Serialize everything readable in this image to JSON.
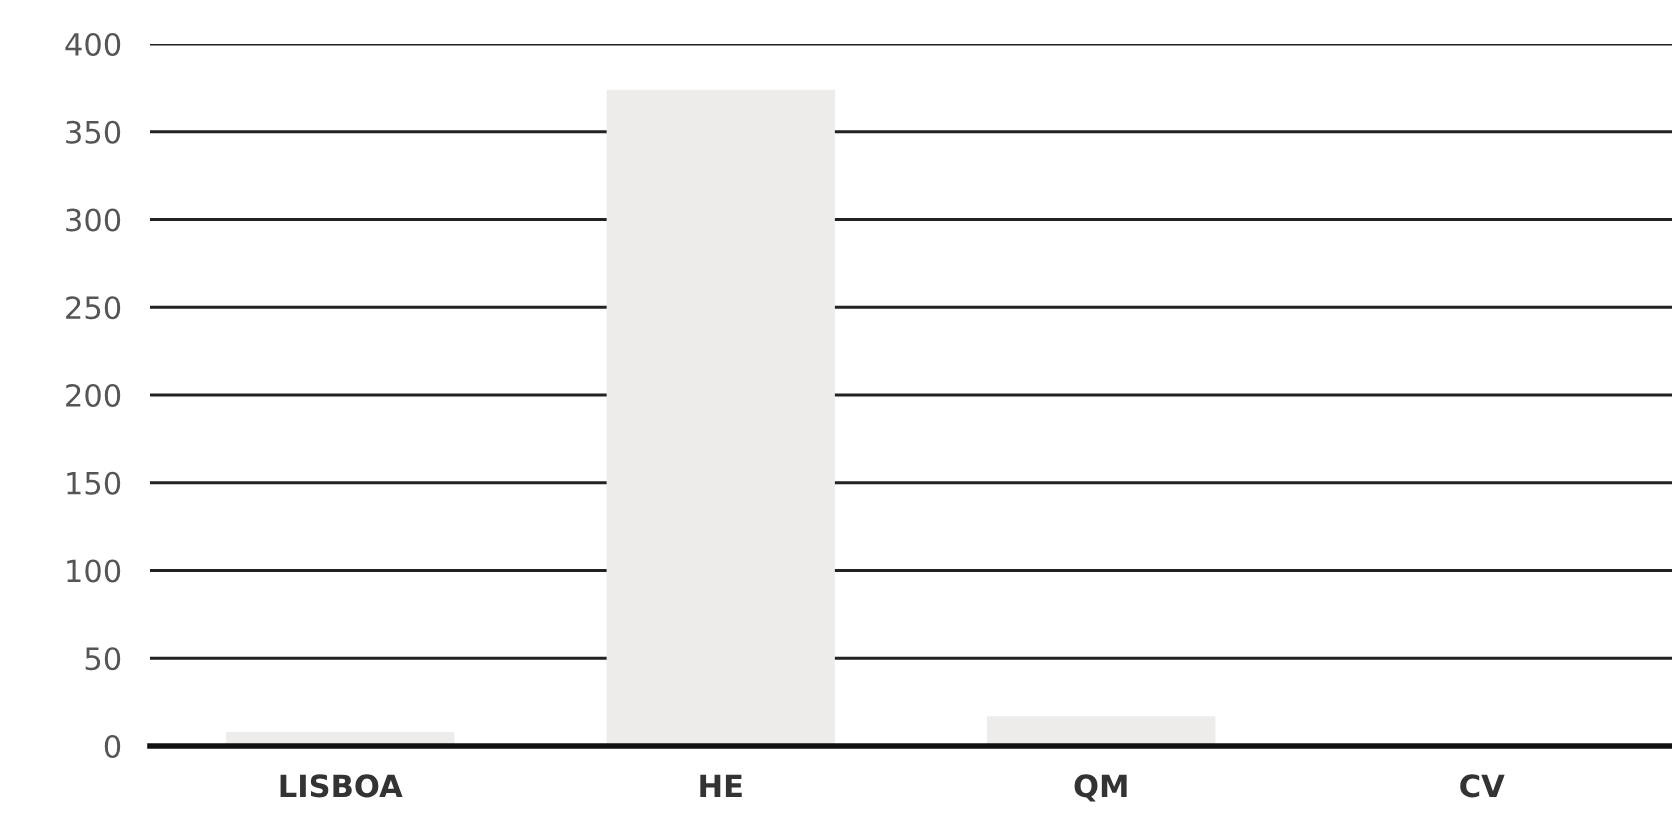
{
  "chart_data": {
    "type": "bar",
    "categories": [
      "LISBOA",
      "HE",
      "QM",
      "CV"
    ],
    "values": [
      8,
      374,
      17,
      0
    ],
    "color": "#edecea",
    "ylim": [
      0,
      400
    ],
    "yticks": [
      0,
      50,
      100,
      150,
      200,
      250,
      300,
      350,
      400
    ],
    "grid": "y"
  }
}
